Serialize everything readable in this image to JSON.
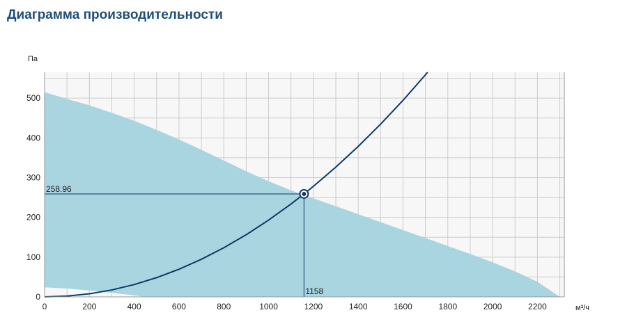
{
  "title": "Диаграмма производительности",
  "chart_data": {
    "type": "area",
    "title": "Диаграмма производительности",
    "xlabel": "м³/ч",
    "ylabel": "Па",
    "xlim": [
      0,
      2320
    ],
    "ylim": [
      0,
      565
    ],
    "x_ticks": [
      0,
      200,
      400,
      600,
      800,
      1000,
      1200,
      1400,
      1600,
      1800,
      2000,
      2200
    ],
    "y_ticks": [
      0,
      100,
      200,
      300,
      400,
      500
    ],
    "grid": true,
    "colors": {
      "area": "#a8d5e0",
      "curve": "#0d3b66",
      "grid": "#cccccc",
      "background": "#f7f7f7",
      "title": "#1f4e79"
    },
    "area_upper": [
      [
        0,
        515
      ],
      [
        100,
        498
      ],
      [
        200,
        482
      ],
      [
        300,
        463
      ],
      [
        400,
        443
      ],
      [
        500,
        420
      ],
      [
        600,
        396
      ],
      [
        700,
        370
      ],
      [
        800,
        343
      ],
      [
        900,
        316
      ],
      [
        1000,
        291
      ],
      [
        1100,
        268
      ],
      [
        1158,
        256
      ],
      [
        1200,
        248
      ],
      [
        1300,
        228
      ],
      [
        1400,
        208
      ],
      [
        1500,
        188
      ],
      [
        1600,
        168
      ],
      [
        1700,
        148
      ],
      [
        1800,
        128
      ],
      [
        1900,
        108
      ],
      [
        2000,
        87
      ],
      [
        2100,
        64
      ],
      [
        2200,
        38
      ],
      [
        2260,
        15
      ],
      [
        2300,
        0
      ]
    ],
    "area_lower": [
      [
        0,
        24
      ],
      [
        100,
        21
      ],
      [
        200,
        16
      ],
      [
        300,
        10
      ],
      [
        400,
        4
      ],
      [
        445,
        0
      ]
    ],
    "system_curve": [
      [
        0,
        0
      ],
      [
        100,
        1.93
      ],
      [
        200,
        7.72
      ],
      [
        300,
        17.4
      ],
      [
        400,
        30.9
      ],
      [
        500,
        48.3
      ],
      [
        600,
        69.5
      ],
      [
        700,
        94.6
      ],
      [
        800,
        123.6
      ],
      [
        900,
        156.4
      ],
      [
        1000,
        193.1
      ],
      [
        1100,
        233.7
      ],
      [
        1158,
        258.96
      ],
      [
        1200,
        278.1
      ],
      [
        1300,
        326.4
      ],
      [
        1400,
        378.5
      ],
      [
        1500,
        434.5
      ],
      [
        1600,
        494.4
      ],
      [
        1710,
        565
      ]
    ],
    "operating_point": {
      "x": 1158,
      "y": 258.96,
      "x_label": "1158",
      "y_label": "258.96"
    }
  }
}
